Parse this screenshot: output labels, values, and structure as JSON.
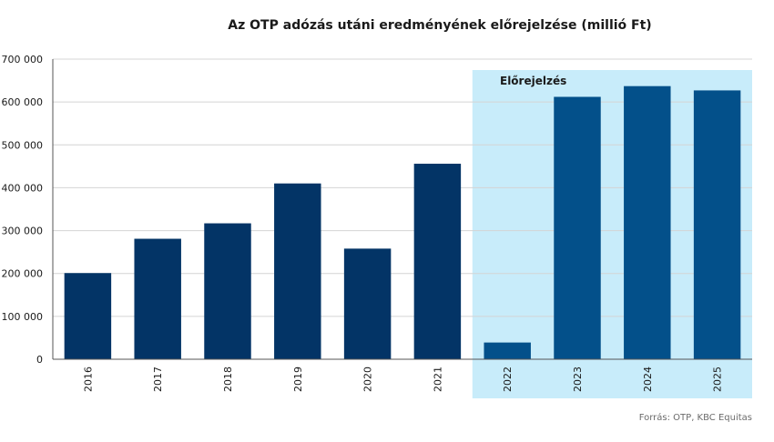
{
  "chart_data": {
    "type": "bar",
    "title": "Az OTP adózás utáni eredményének előrejelzése (millió Ft)",
    "xlabel": "",
    "ylabel": "",
    "categories": [
      "2016",
      "2017",
      "2018",
      "2019",
      "2020",
      "2021",
      "2022",
      "2023",
      "2024",
      "2025"
    ],
    "values": [
      201000,
      281000,
      317000,
      410000,
      258000,
      456000,
      39000,
      612000,
      637000,
      627000
    ],
    "ylim": [
      0,
      700000
    ],
    "yticks": [
      0,
      100000,
      200000,
      300000,
      400000,
      500000,
      600000,
      700000
    ],
    "ytick_labels": [
      "0",
      "100 000",
      "200 000",
      "300 000",
      "400 000",
      "500 000",
      "600 000",
      "700 000"
    ],
    "grid": true,
    "forecast_region": {
      "label": "Előrejelzés",
      "from_category": "2022",
      "to_category": "2025",
      "color": "#c8ecfa"
    },
    "colors": {
      "actual": "#033466",
      "forecast": "#03508a",
      "grid": "#d4d4d4",
      "axis": "#555555",
      "text": "#1a1a1a"
    },
    "forecast_categories": [
      "2022",
      "2023",
      "2024",
      "2025"
    ]
  },
  "source": "Forrás: OTP, KBC Equitas"
}
